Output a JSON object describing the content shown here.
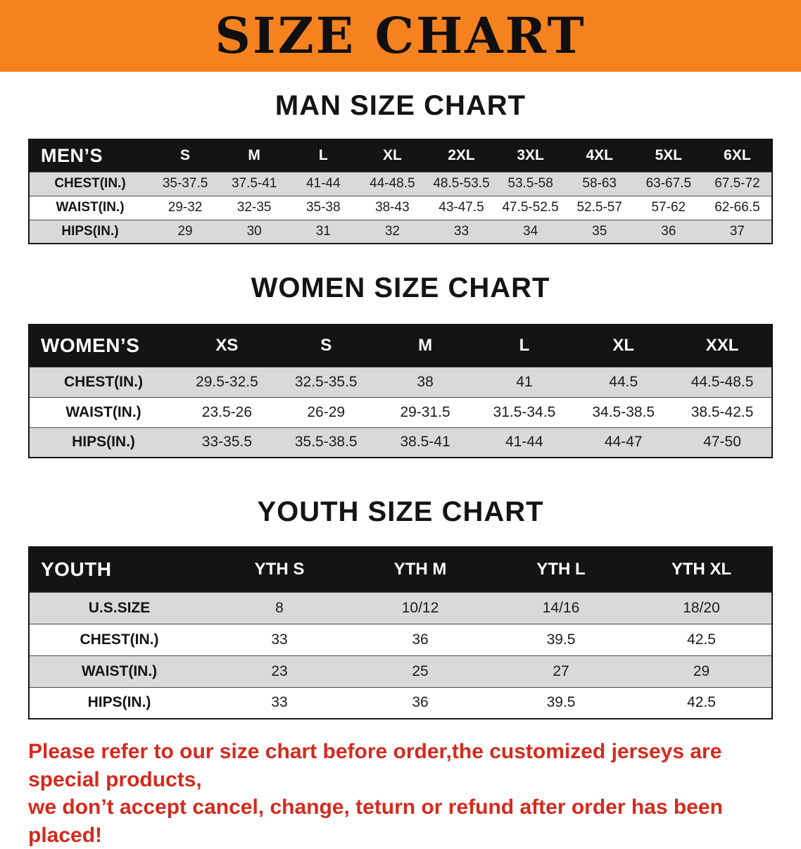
{
  "banner": {
    "title": "SIZE CHART"
  },
  "colors": {
    "banner_bg": "#f5821f",
    "table_header_bg": "#141414",
    "row_shade": "#d9d9d9",
    "disclaimer_text": "#d42a1e"
  },
  "sections": [
    {
      "id": "men",
      "heading": "MAN SIZE CHART",
      "table": {
        "header": [
          "MEN’S",
          "S",
          "M",
          "L",
          "XL",
          "2XL",
          "3XL",
          "4XL",
          "5XL",
          "6XL"
        ],
        "rows": [
          [
            "CHEST(IN.)",
            "35-37.5",
            "37.5-41",
            "41-44",
            "44-48.5",
            "48.5-53.5",
            "53.5-58",
            "58-63",
            "63-67.5",
            "67.5-72"
          ],
          [
            "WAIST(IN.)",
            "29-32",
            "32-35",
            "35-38",
            "38-43",
            "43-47.5",
            "47.5-52.5",
            "52.5-57",
            "57-62",
            "62-66.5"
          ],
          [
            "HIPS(IN.)",
            "29",
            "30",
            "31",
            "32",
            "33",
            "34",
            "35",
            "36",
            "37"
          ]
        ]
      }
    },
    {
      "id": "women",
      "heading": "WOMEN SIZE CHART",
      "table": {
        "header": [
          "WOMEN’S",
          "XS",
          "S",
          "M",
          "L",
          "XL",
          "XXL"
        ],
        "rows": [
          [
            "CHEST(IN.)",
            "29.5-32.5",
            "32.5-35.5",
            "38",
            "41",
            "44.5",
            "44.5-48.5"
          ],
          [
            "WAIST(IN.)",
            "23.5-26",
            "26-29",
            "29-31.5",
            "31.5-34.5",
            "34.5-38.5",
            "38.5-42.5"
          ],
          [
            "HIPS(IN.)",
            "33-35.5",
            "35.5-38.5",
            "38.5-41",
            "41-44",
            "44-47",
            "47-50"
          ]
        ]
      }
    },
    {
      "id": "youth",
      "heading": "YOUTH SIZE CHART",
      "table": {
        "header": [
          "YOUTH",
          "YTH S",
          "YTH M",
          "YTH L",
          "YTH XL"
        ],
        "rows": [
          [
            "U.S.SIZE",
            "8",
            "10/12",
            "14/16",
            "18/20"
          ],
          [
            "CHEST(IN.)",
            "33",
            "36",
            "39.5",
            "42.5"
          ],
          [
            "WAIST(IN.)",
            "23",
            "25",
            "27",
            "29"
          ],
          [
            "HIPS(IN.)",
            "33",
            "36",
            "39.5",
            "42.5"
          ]
        ]
      }
    }
  ],
  "disclaimer": {
    "line1": "Please refer to our size chart before order,the customized jerseys are special products,",
    "line2": "we don’t accept cancel, change, teturn or refund after order has been placed!"
  }
}
